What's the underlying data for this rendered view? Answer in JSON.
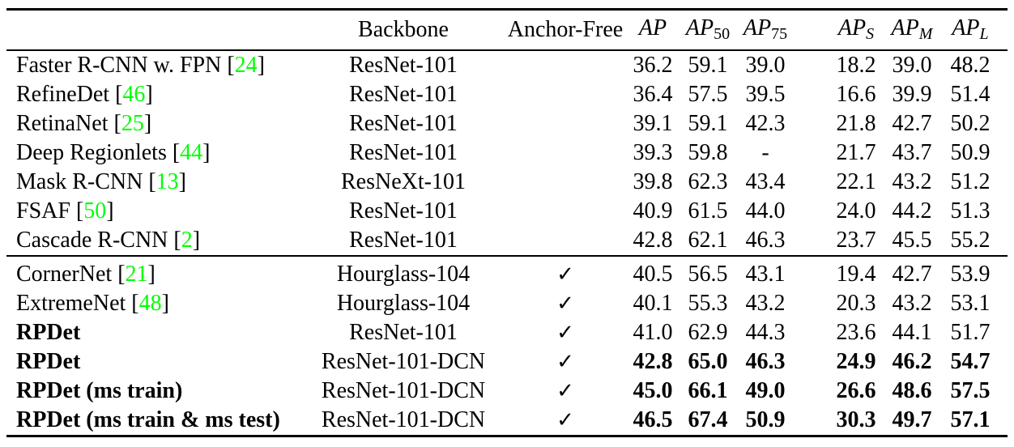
{
  "table": {
    "header": {
      "method": "",
      "backbone": "Backbone",
      "anchor_free": "Anchor-Free",
      "metrics": [
        {
          "base": "AP",
          "sub": "",
          "sub_class": "m-sub up"
        },
        {
          "base": "AP",
          "sub": "50",
          "sub_class": "m-sub up"
        },
        {
          "base": "AP",
          "sub": "75",
          "sub_class": "m-sub up"
        },
        {
          "base": "AP",
          "sub": "S",
          "sub_class": "m-sub it"
        },
        {
          "base": "AP",
          "sub": "M",
          "sub_class": "m-sub it"
        },
        {
          "base": "AP",
          "sub": "L",
          "sub_class": "m-sub it"
        }
      ]
    },
    "checkmark_glyph": "✓",
    "citation_color": "#00ff00",
    "text_color": "#000000",
    "sections": [
      {
        "rows": [
          {
            "name": "Faster R-CNN w. FPN",
            "ref": "24",
            "backbone": "ResNet-101",
            "anchor_free": false,
            "bold_name": false,
            "bold_values": false,
            "values": [
              "36.2",
              "59.1",
              "39.0",
              "18.2",
              "39.0",
              "48.2"
            ]
          },
          {
            "name": "RefineDet",
            "ref": "46",
            "backbone": "ResNet-101",
            "anchor_free": false,
            "bold_name": false,
            "bold_values": false,
            "values": [
              "36.4",
              "57.5",
              "39.5",
              "16.6",
              "39.9",
              "51.4"
            ]
          },
          {
            "name": "RetinaNet",
            "ref": "25",
            "backbone": "ResNet-101",
            "anchor_free": false,
            "bold_name": false,
            "bold_values": false,
            "values": [
              "39.1",
              "59.1",
              "42.3",
              "21.8",
              "42.7",
              "50.2"
            ]
          },
          {
            "name": "Deep Regionlets",
            "ref": "44",
            "backbone": "ResNet-101",
            "anchor_free": false,
            "bold_name": false,
            "bold_values": false,
            "values": [
              "39.3",
              "59.8",
              "-",
              "21.7",
              "43.7",
              "50.9"
            ]
          },
          {
            "name": "Mask R-CNN",
            "ref": "13",
            "backbone": "ResNeXt-101",
            "anchor_free": false,
            "bold_name": false,
            "bold_values": false,
            "values": [
              "39.8",
              "62.3",
              "43.4",
              "22.1",
              "43.2",
              "51.2"
            ]
          },
          {
            "name": "FSAF",
            "ref": "50",
            "backbone": "ResNet-101",
            "anchor_free": false,
            "bold_name": false,
            "bold_values": false,
            "values": [
              "40.9",
              "61.5",
              "44.0",
              "24.0",
              "44.2",
              "51.3"
            ]
          },
          {
            "name": "Cascade R-CNN",
            "ref": "2",
            "backbone": "ResNet-101",
            "anchor_free": false,
            "bold_name": false,
            "bold_values": false,
            "values": [
              "42.8",
              "62.1",
              "46.3",
              "23.7",
              "45.5",
              "55.2"
            ]
          }
        ]
      },
      {
        "rows": [
          {
            "name": "CornerNet",
            "ref": "21",
            "backbone": "Hourglass-104",
            "anchor_free": true,
            "bold_name": false,
            "bold_values": false,
            "values": [
              "40.5",
              "56.5",
              "43.1",
              "19.4",
              "42.7",
              "53.9"
            ]
          },
          {
            "name": "ExtremeNet",
            "ref": "48",
            "backbone": "Hourglass-104",
            "anchor_free": true,
            "bold_name": false,
            "bold_values": false,
            "values": [
              "40.1",
              "55.3",
              "43.2",
              "20.3",
              "43.2",
              "53.1"
            ]
          },
          {
            "name": "RPDet",
            "ref": null,
            "backbone": "ResNet-101",
            "anchor_free": true,
            "bold_name": true,
            "bold_values": false,
            "values": [
              "41.0",
              "62.9",
              "44.3",
              "23.6",
              "44.1",
              "51.7"
            ]
          },
          {
            "name": "RPDet",
            "ref": null,
            "backbone": "ResNet-101-DCN",
            "anchor_free": true,
            "bold_name": true,
            "bold_values": true,
            "values": [
              "42.8",
              "65.0",
              "46.3",
              "24.9",
              "46.2",
              "54.7"
            ]
          },
          {
            "name": "RPDet (ms train)",
            "ref": null,
            "backbone": "ResNet-101-DCN",
            "anchor_free": true,
            "bold_name": true,
            "bold_values": true,
            "values": [
              "45.0",
              "66.1",
              "49.0",
              "26.6",
              "48.6",
              "57.5"
            ]
          },
          {
            "name": "RPDet (ms train & ms test)",
            "ref": null,
            "backbone": "ResNet-101-DCN",
            "anchor_free": true,
            "bold_name": true,
            "bold_values": true,
            "values": [
              "46.5",
              "67.4",
              "50.9",
              "30.3",
              "49.7",
              "57.1"
            ]
          }
        ]
      }
    ]
  }
}
